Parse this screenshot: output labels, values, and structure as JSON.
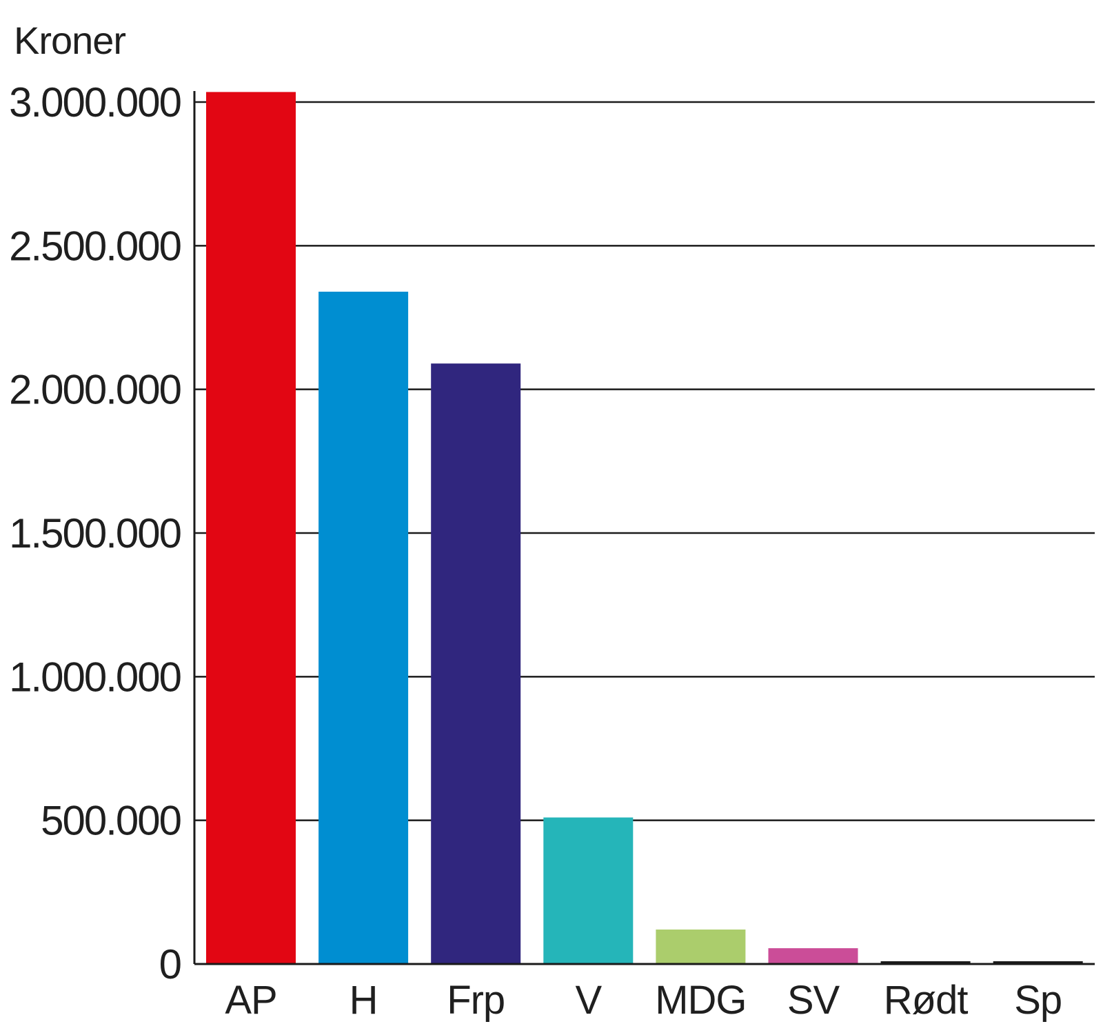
{
  "chart_data": {
    "type": "bar",
    "title": "",
    "xlabel": "",
    "ylabel": "Kroner",
    "categories": [
      "AP",
      "H",
      "Frp",
      "V",
      "MDG",
      "SV",
      "Rødt",
      "Sp"
    ],
    "values": [
      3035000,
      2340000,
      2090000,
      510000,
      120000,
      55000,
      3000,
      2000
    ],
    "colors": [
      "#e20613",
      "#008ed1",
      "#30267e",
      "#25b5b9",
      "#abcd6c",
      "#cb4d98",
      "#1a1a1a",
      "#1a1a1a"
    ],
    "ylim": [
      0,
      3000000
    ],
    "yticks": [
      0,
      500000,
      1000000,
      1500000,
      2000000,
      2500000,
      3000000
    ],
    "ytick_labels": [
      "0",
      "500.000",
      "1.000.000",
      "1.500.000",
      "2.000.000",
      "2.500.000",
      "3.000.000"
    ],
    "grid": true,
    "legend": "none"
  }
}
